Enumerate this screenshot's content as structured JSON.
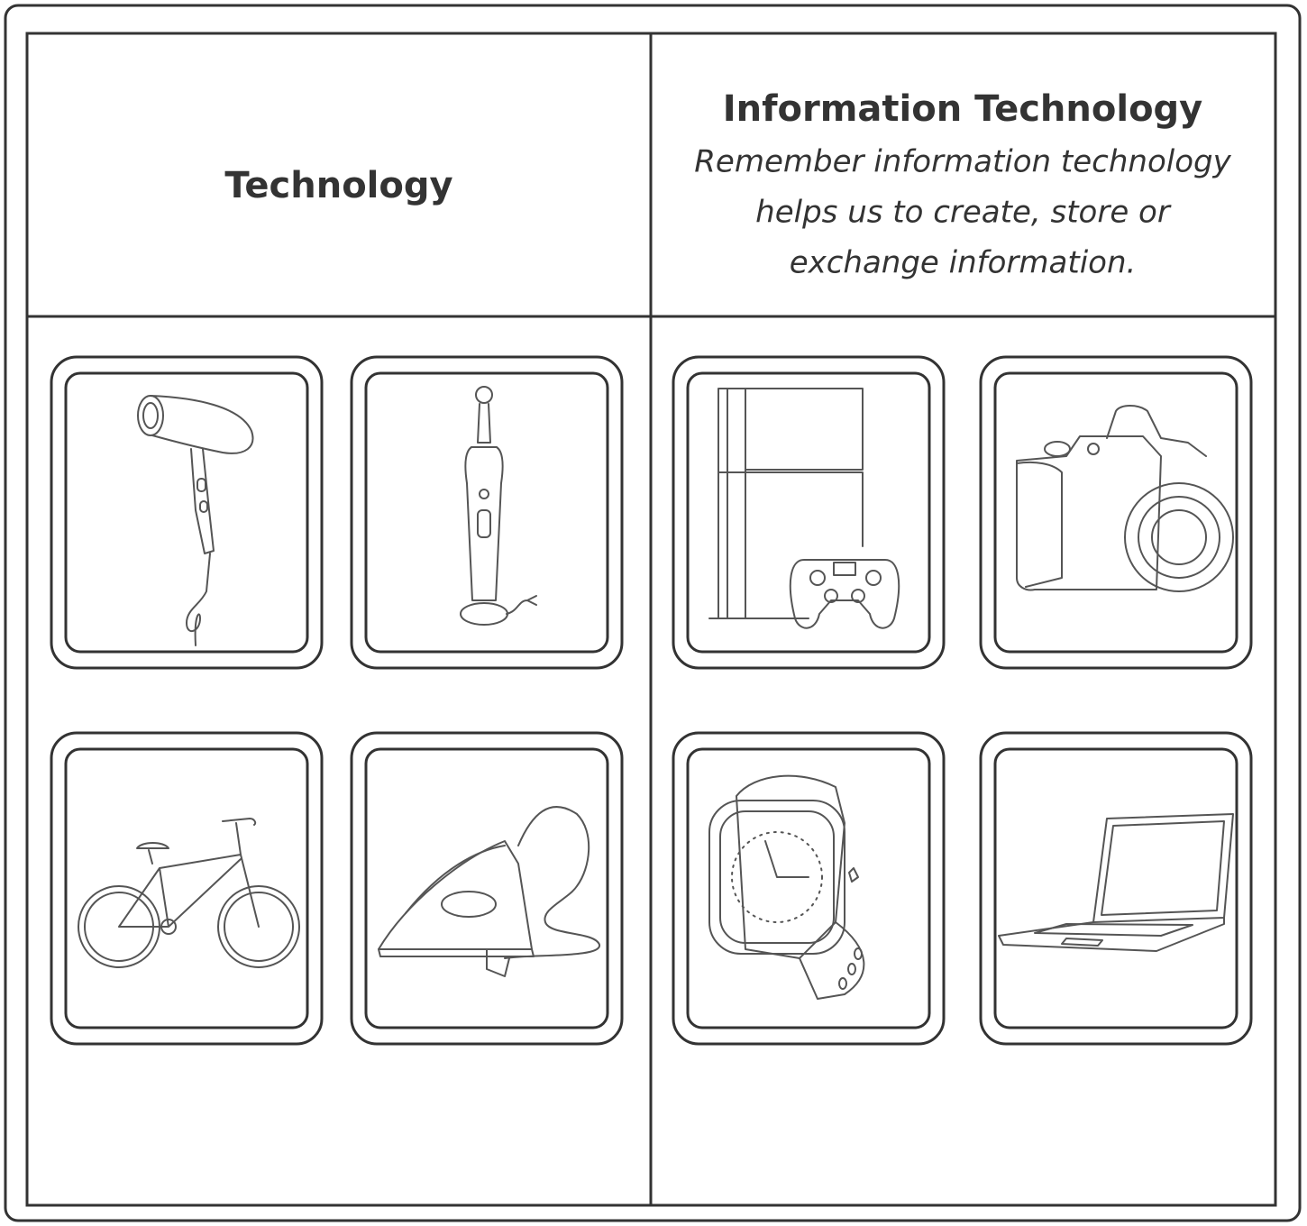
{
  "header": {
    "left_title": "Technology",
    "right_title": "Information Technology",
    "right_description": [
      "Remember information technology",
      "helps us to create, store or",
      "exchange information."
    ]
  }
}
